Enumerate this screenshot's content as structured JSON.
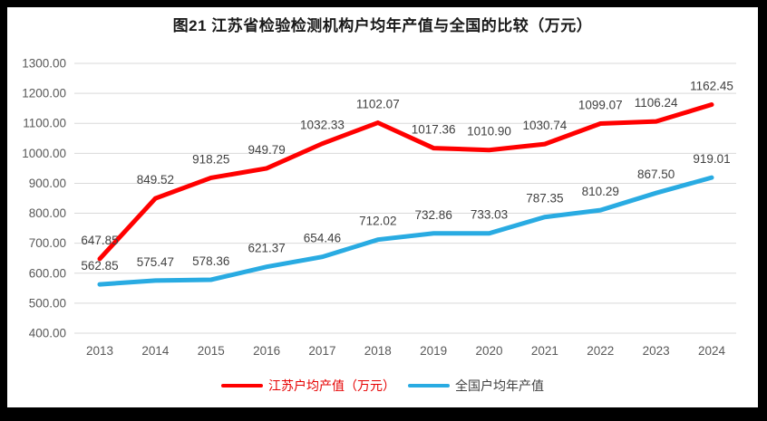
{
  "title": "图21  江苏省检验检测机构户均年产值与全国的比较（万元）",
  "colors": {
    "frame": "#000000",
    "background": "#ffffff",
    "gridline": "#d9d9d9",
    "axis_text": "#595959",
    "data_label_text": "#404040",
    "title_text": "#1a1a1a"
  },
  "chart_data": {
    "type": "line",
    "title": "图21  江苏省检验检测机构户均年产值与全国的比较（万元）",
    "categories": [
      "2013",
      "2014",
      "2015",
      "2016",
      "2017",
      "2018",
      "2019",
      "2020",
      "2021",
      "2022",
      "2023",
      "2024"
    ],
    "series": [
      {
        "name": "江苏户均产值（万元）",
        "color": "#ff0000",
        "legend_text_color": "#e60000",
        "values": [
          647.85,
          849.52,
          918.25,
          949.79,
          1032.33,
          1102.07,
          1017.36,
          1010.9,
          1030.74,
          1099.07,
          1106.24,
          1162.45
        ]
      },
      {
        "name": "全国户均年产值",
        "color": "#29abe2",
        "legend_text_color": "#404040",
        "values": [
          562.85,
          575.47,
          578.36,
          621.37,
          654.46,
          712.02,
          732.86,
          733.03,
          787.35,
          810.29,
          867.5,
          919.01
        ]
      }
    ],
    "ylim": [
      400,
      1300
    ],
    "ytick_step": 100,
    "ytick_labels": [
      "400.00",
      "500.00",
      "600.00",
      "700.00",
      "800.00",
      "900.00",
      "1000.00",
      "1100.00",
      "1200.00",
      "1300.00"
    ],
    "grid": true,
    "data_labels": true,
    "label_decimals": 2,
    "legend_position": "bottom",
    "xlabel": "",
    "ylabel": ""
  }
}
